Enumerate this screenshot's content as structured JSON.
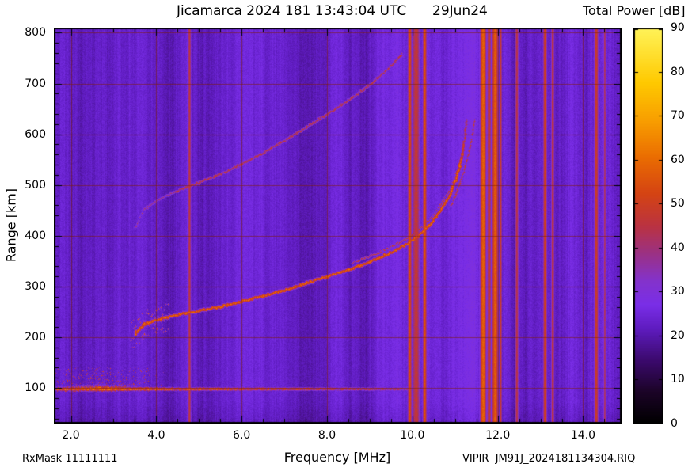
{
  "header": {
    "title": "Jicamarca 2024 181 13:43:04 UTC",
    "date": "29Jun24",
    "colorbar_title": "Total Power [dB]"
  },
  "axes": {
    "xlabel": "Frequency [MHz]",
    "ylabel": "Range [km]"
  },
  "footer": {
    "rx_mask": "RxMask 11111111",
    "source_file": "VIPIR  JM91J_2024181134304.RIQ"
  },
  "chart_data": {
    "type": "heatmap",
    "title": "Jicamarca 2024 181 13:43:04 UTC    29Jun24",
    "xlabel": "Frequency [MHz]",
    "ylabel": "Range [km]",
    "xlim": [
      1.6,
      14.9
    ],
    "ylim": [
      30,
      810
    ],
    "x_major_ticks": [
      2,
      4,
      6,
      8,
      10,
      12,
      14
    ],
    "x_tick_labels": [
      "2.0",
      "4.0",
      "6.0",
      "8.0",
      "10.0",
      "12.0",
      "14.0"
    ],
    "x_minor_tick_step": 0.5,
    "y_major_ticks": [
      100,
      200,
      300,
      400,
      500,
      600,
      700,
      800
    ],
    "y_tick_labels": [
      "100",
      "200",
      "300",
      "400",
      "500",
      "600",
      "700",
      "800"
    ],
    "y_minor_tick_step": 20,
    "grid": true,
    "grid_color": "#801e00",
    "background_noise_db": 23.5,
    "colorbar": {
      "label": "Total Power [dB]",
      "min": 0,
      "max": 90,
      "ticks": [
        0,
        10,
        20,
        30,
        40,
        50,
        60,
        70,
        80,
        90
      ],
      "palette_stops": [
        [
          0.0,
          "#000000"
        ],
        [
          0.08,
          "#1c0428"
        ],
        [
          0.16,
          "#3c0a6e"
        ],
        [
          0.24,
          "#5f1cc0"
        ],
        [
          0.3,
          "#7a2ee8"
        ],
        [
          0.36,
          "#8433cc"
        ],
        [
          0.43,
          "#9c3184"
        ],
        [
          0.5,
          "#bb3341"
        ],
        [
          0.58,
          "#d54414"
        ],
        [
          0.67,
          "#ea6c02"
        ],
        [
          0.76,
          "#f89c00"
        ],
        [
          0.86,
          "#ffc900"
        ],
        [
          1.0,
          "#fff45a"
        ]
      ]
    },
    "features": {
      "f_layer_o_trace": {
        "db": 60,
        "points_mhz_km": [
          [
            3.5,
            208
          ],
          [
            3.7,
            226
          ],
          [
            3.9,
            232
          ],
          [
            4.1,
            237
          ],
          [
            4.4,
            243
          ],
          [
            4.7,
            248
          ],
          [
            5.0,
            253
          ],
          [
            5.5,
            261
          ],
          [
            6.0,
            271
          ],
          [
            6.5,
            282
          ],
          [
            7.0,
            294
          ],
          [
            7.5,
            307
          ],
          [
            8.0,
            320
          ],
          [
            8.5,
            334
          ],
          [
            9.0,
            349
          ],
          [
            9.5,
            368
          ],
          [
            9.8,
            381
          ],
          [
            10.1,
            398
          ],
          [
            10.4,
            422
          ],
          [
            10.65,
            450
          ],
          [
            10.85,
            478
          ],
          [
            11.0,
            508
          ],
          [
            11.1,
            538
          ],
          [
            11.18,
            570
          ],
          [
            11.23,
            600
          ],
          [
            11.26,
            628
          ]
        ]
      },
      "f_layer_x_trace": {
        "db": 49,
        "points_mhz_km": [
          [
            10.9,
            460
          ],
          [
            11.05,
            490
          ],
          [
            11.2,
            528
          ],
          [
            11.32,
            565
          ],
          [
            11.4,
            600
          ],
          [
            11.45,
            630
          ]
        ]
      },
      "spread_strand": {
        "db": 47,
        "freq_range_mhz": [
          8.6,
          11.15
        ],
        "offset_km": 11
      },
      "second_hop_trace": {
        "db": 45,
        "freq_range_mhz": [
          3.5,
          9.75
        ],
        "multiple": 2
      },
      "e_region_band": {
        "center_km": 98,
        "freq_range_mhz": [
          1.6,
          9.9
        ],
        "db_near": 57,
        "db_far": 42,
        "blob": {
          "center_mhz": 2.7,
          "sigma_mhz": 0.85,
          "freq_range_mhz": [
            1.7,
            4.4
          ],
          "db": 66,
          "top_km": 140
        }
      },
      "rfi_lines": [
        {
          "mhz": 4.77,
          "db": 46,
          "width_mhz": 0.035
        },
        {
          "mhz": 9.93,
          "db": 53,
          "width_mhz": 0.045
        },
        {
          "mhz": 10.08,
          "db": 47,
          "width_mhz": 0.09
        },
        {
          "mhz": 10.28,
          "db": 54,
          "width_mhz": 0.045
        },
        {
          "mhz": 11.65,
          "db": 58,
          "width_mhz": 0.07
        },
        {
          "mhz": 11.79,
          "db": 48,
          "width_mhz": 0.05
        },
        {
          "mhz": 11.93,
          "db": 57,
          "width_mhz": 0.07
        },
        {
          "mhz": 12.06,
          "db": 48,
          "width_mhz": 0.03
        },
        {
          "mhz": 12.44,
          "db": 45,
          "width_mhz": 0.04
        },
        {
          "mhz": 13.1,
          "db": 50,
          "width_mhz": 0.045
        },
        {
          "mhz": 13.28,
          "db": 47,
          "width_mhz": 0.035
        },
        {
          "mhz": 14.3,
          "db": 49,
          "width_mhz": 0.05
        },
        {
          "mhz": 14.5,
          "db": 43,
          "width_mhz": 0.03
        }
      ]
    }
  }
}
